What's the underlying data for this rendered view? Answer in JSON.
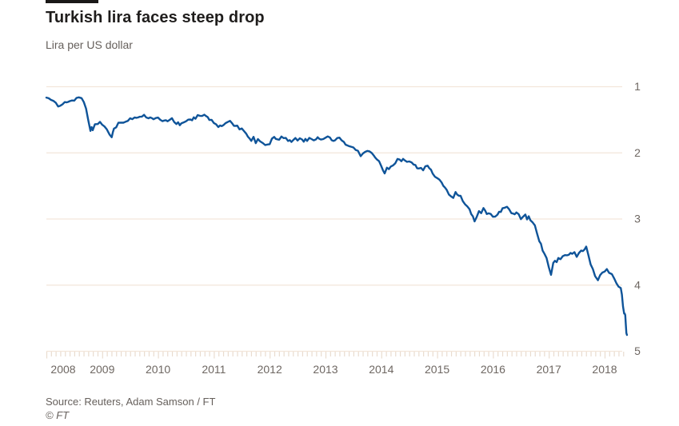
{
  "header": {
    "title": "Turkish lira faces steep drop",
    "subtitle": "Lira per US dollar"
  },
  "footer": {
    "source": "Source: Reuters, Adam Samson / FT",
    "copyright": "© FT"
  },
  "colors": {
    "line": "#0f5499",
    "gridline": "#f3e6da",
    "tick": "#e9dccf",
    "axis_text": "#6e6762",
    "title_text": "#1f1d1c",
    "secondary_text": "#66605c",
    "brand_bar": "#1a1817"
  },
  "chart_data": {
    "type": "line",
    "title": "Turkish lira faces steep drop",
    "ylabel": "Lira per US dollar",
    "xlabel": "",
    "grid": "horizontal",
    "legend": "none",
    "y_axis_side": "right",
    "y_axis_direction": "increases-downward",
    "y_ticks": [
      1,
      2,
      3,
      4,
      5
    ],
    "y_range": [
      1,
      5
    ],
    "x_range": [
      2008.0,
      2018.42
    ],
    "x_tick_years": [
      2008,
      2009,
      2010,
      2011,
      2012,
      2013,
      2014,
      2015,
      2016,
      2017,
      2018
    ],
    "x_minor_ticks": "monthly",
    "series": [
      {
        "name": "Lira per US dollar",
        "points": [
          [
            2008.0,
            1.17
          ],
          [
            2008.04,
            1.18
          ],
          [
            2008.08,
            1.19
          ],
          [
            2008.13,
            1.23
          ],
          [
            2008.17,
            1.26
          ],
          [
            2008.21,
            1.29
          ],
          [
            2008.25,
            1.31
          ],
          [
            2008.29,
            1.27
          ],
          [
            2008.33,
            1.23
          ],
          [
            2008.42,
            1.22
          ],
          [
            2008.5,
            1.2
          ],
          [
            2008.54,
            1.17
          ],
          [
            2008.58,
            1.16
          ],
          [
            2008.63,
            1.18
          ],
          [
            2008.67,
            1.24
          ],
          [
            2008.71,
            1.33
          ],
          [
            2008.75,
            1.5
          ],
          [
            2008.79,
            1.65
          ],
          [
            2008.81,
            1.6
          ],
          [
            2008.83,
            1.66
          ],
          [
            2008.87,
            1.58
          ],
          [
            2008.92,
            1.55
          ],
          [
            2008.96,
            1.52
          ],
          [
            2009.0,
            1.58
          ],
          [
            2009.04,
            1.63
          ],
          [
            2009.08,
            1.66
          ],
          [
            2009.13,
            1.71
          ],
          [
            2009.17,
            1.79
          ],
          [
            2009.19,
            1.72
          ],
          [
            2009.21,
            1.66
          ],
          [
            2009.25,
            1.61
          ],
          [
            2009.29,
            1.56
          ],
          [
            2009.33,
            1.55
          ],
          [
            2009.38,
            1.57
          ],
          [
            2009.42,
            1.54
          ],
          [
            2009.5,
            1.48
          ],
          [
            2009.58,
            1.49
          ],
          [
            2009.67,
            1.47
          ],
          [
            2009.75,
            1.45
          ],
          [
            2009.83,
            1.49
          ],
          [
            2009.92,
            1.49
          ],
          [
            2010.0,
            1.46
          ],
          [
            2010.08,
            1.52
          ],
          [
            2010.17,
            1.54
          ],
          [
            2010.25,
            1.48
          ],
          [
            2010.33,
            1.56
          ],
          [
            2010.42,
            1.58
          ],
          [
            2010.5,
            1.53
          ],
          [
            2010.58,
            1.5
          ],
          [
            2010.67,
            1.47
          ],
          [
            2010.75,
            1.43
          ],
          [
            2010.83,
            1.45
          ],
          [
            2010.92,
            1.5
          ],
          [
            2011.0,
            1.55
          ],
          [
            2011.08,
            1.6
          ],
          [
            2011.17,
            1.57
          ],
          [
            2011.25,
            1.52
          ],
          [
            2011.33,
            1.57
          ],
          [
            2011.42,
            1.61
          ],
          [
            2011.5,
            1.65
          ],
          [
            2011.58,
            1.72
          ],
          [
            2011.67,
            1.8
          ],
          [
            2011.71,
            1.76
          ],
          [
            2011.75,
            1.84
          ],
          [
            2011.79,
            1.78
          ],
          [
            2011.83,
            1.82
          ],
          [
            2011.88,
            1.86
          ],
          [
            2011.92,
            1.89
          ],
          [
            2012.0,
            1.87
          ],
          [
            2012.04,
            1.81
          ],
          [
            2012.08,
            1.76
          ],
          [
            2012.17,
            1.79
          ],
          [
            2012.25,
            1.77
          ],
          [
            2012.33,
            1.83
          ],
          [
            2012.42,
            1.81
          ],
          [
            2012.5,
            1.8
          ],
          [
            2012.58,
            1.82
          ],
          [
            2012.67,
            1.8
          ],
          [
            2012.75,
            1.8
          ],
          [
            2012.83,
            1.79
          ],
          [
            2012.92,
            1.79
          ],
          [
            2013.0,
            1.76
          ],
          [
            2013.08,
            1.78
          ],
          [
            2013.17,
            1.81
          ],
          [
            2013.25,
            1.8
          ],
          [
            2013.33,
            1.84
          ],
          [
            2013.42,
            1.9
          ],
          [
            2013.5,
            1.93
          ],
          [
            2013.58,
            1.98
          ],
          [
            2013.63,
            2.04
          ],
          [
            2013.67,
            2.02
          ],
          [
            2013.75,
            1.99
          ],
          [
            2013.83,
            2.03
          ],
          [
            2013.92,
            2.09
          ],
          [
            2014.0,
            2.18
          ],
          [
            2014.06,
            2.31
          ],
          [
            2014.1,
            2.25
          ],
          [
            2014.17,
            2.22
          ],
          [
            2014.25,
            2.14
          ],
          [
            2014.33,
            2.1
          ],
          [
            2014.42,
            2.12
          ],
          [
            2014.5,
            2.13
          ],
          [
            2014.58,
            2.17
          ],
          [
            2014.67,
            2.24
          ],
          [
            2014.75,
            2.25
          ],
          [
            2014.83,
            2.22
          ],
          [
            2014.92,
            2.3
          ],
          [
            2015.0,
            2.39
          ],
          [
            2015.08,
            2.47
          ],
          [
            2015.17,
            2.58
          ],
          [
            2015.25,
            2.64
          ],
          [
            2015.29,
            2.69
          ],
          [
            2015.33,
            2.61
          ],
          [
            2015.42,
            2.68
          ],
          [
            2015.5,
            2.76
          ],
          [
            2015.58,
            2.89
          ],
          [
            2015.67,
            3.01
          ],
          [
            2015.71,
            2.94
          ],
          [
            2015.75,
            2.91
          ],
          [
            2015.83,
            2.87
          ],
          [
            2015.92,
            2.93
          ],
          [
            2016.0,
            2.99
          ],
          [
            2016.08,
            2.93
          ],
          [
            2016.17,
            2.86
          ],
          [
            2016.25,
            2.81
          ],
          [
            2016.33,
            2.93
          ],
          [
            2016.42,
            2.89
          ],
          [
            2016.5,
            2.99
          ],
          [
            2016.54,
            2.94
          ],
          [
            2016.58,
            2.97
          ],
          [
            2016.67,
            3.0
          ],
          [
            2016.75,
            3.08
          ],
          [
            2016.83,
            3.35
          ],
          [
            2016.92,
            3.53
          ],
          [
            2017.0,
            3.72
          ],
          [
            2017.04,
            3.86
          ],
          [
            2017.08,
            3.68
          ],
          [
            2017.17,
            3.62
          ],
          [
            2017.25,
            3.56
          ],
          [
            2017.33,
            3.58
          ],
          [
            2017.42,
            3.52
          ],
          [
            2017.5,
            3.55
          ],
          [
            2017.58,
            3.49
          ],
          [
            2017.67,
            3.44
          ],
          [
            2017.71,
            3.53
          ],
          [
            2017.75,
            3.68
          ],
          [
            2017.83,
            3.85
          ],
          [
            2017.88,
            3.94
          ],
          [
            2017.92,
            3.83
          ],
          [
            2018.0,
            3.78
          ],
          [
            2018.04,
            3.74
          ],
          [
            2018.08,
            3.79
          ],
          [
            2018.13,
            3.82
          ],
          [
            2018.17,
            3.89
          ],
          [
            2018.21,
            3.94
          ],
          [
            2018.25,
            3.99
          ],
          [
            2018.29,
            4.07
          ],
          [
            2018.31,
            4.17
          ],
          [
            2018.33,
            4.3
          ],
          [
            2018.35,
            4.42
          ],
          [
            2018.36,
            4.47
          ],
          [
            2018.37,
            4.46
          ],
          [
            2018.38,
            4.6
          ],
          [
            2018.39,
            4.73
          ],
          [
            2018.4,
            4.76
          ]
        ]
      }
    ]
  }
}
